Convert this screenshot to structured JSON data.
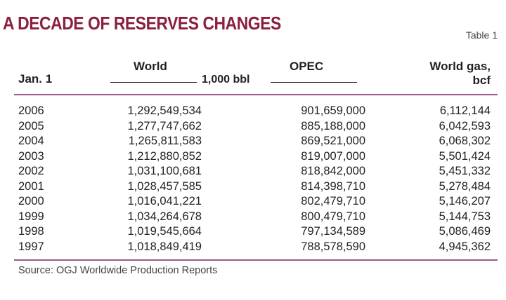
{
  "title": "A DECADE OF RESERVES CHANGES",
  "table_label": "Table 1",
  "headers": {
    "year": "Jan. 1",
    "world": "World",
    "opec": "OPEC",
    "gas_line1": "World gas,",
    "gas_line2": "bcf",
    "unit": "1,000 bbl"
  },
  "rows": [
    {
      "year": "2006",
      "world": "1,292,549,534",
      "opec": "901,659,000",
      "gas": "6,112,144"
    },
    {
      "year": "2005",
      "world": "1,277,747,662",
      "opec": "885,188,000",
      "gas": "6,042,593"
    },
    {
      "year": "2004",
      "world": "1,265,811,583",
      "opec": "869,521,000",
      "gas": "6,068,302"
    },
    {
      "year": "2003",
      "world": "1,212,880,852",
      "opec": "819,007,000",
      "gas": "5,501,424"
    },
    {
      "year": "2002",
      "world": "1,031,100,681",
      "opec": "818,842,000",
      "gas": "5,451,332"
    },
    {
      "year": "2001",
      "world": "1,028,457,585",
      "opec": "814,398,710",
      "gas": "5,278,484"
    },
    {
      "year": "2000",
      "world": "1,016,041,221",
      "opec": "802,479,710",
      "gas": "5,146,207"
    },
    {
      "year": "1999",
      "world": "1,034,264,678",
      "opec": "800,479,710",
      "gas": "5,144,753"
    },
    {
      "year": "1998",
      "world": "1,019,545,664",
      "opec": "797,134,589",
      "gas": "5,086,469"
    },
    {
      "year": "1997",
      "world": "1,018,849,419",
      "opec": "788,578,590",
      "gas": "4,945,362"
    }
  ],
  "source": "Source: OGJ Worldwide Production Reports",
  "colors": {
    "title": "#8b1f3d",
    "rule": "#9c5a86",
    "text": "#231f20"
  }
}
